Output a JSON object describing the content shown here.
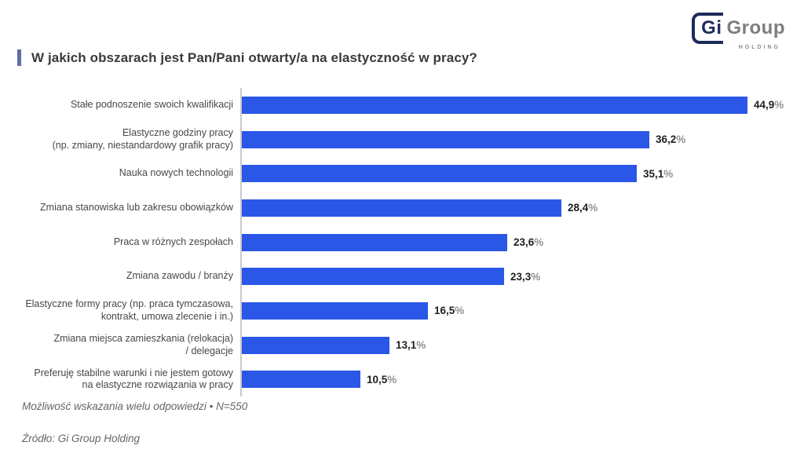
{
  "header": {
    "title": "W jakich obszarach jest Pan/Pani otwarty/a na elastyczność w pracy?",
    "accent_color": "#5e6fa1"
  },
  "logo": {
    "part1": "Gi",
    "part2": "Group",
    "subtitle": "HOLDING",
    "navy_color": "#1c2b5a",
    "gray_color": "#7d7d7d"
  },
  "chart_data": {
    "type": "bar",
    "orientation": "horizontal",
    "title": "W jakich obszarach jest Pan/Pani otwarty/a na elastyczność w pracy?",
    "xlabel": "",
    "ylabel": "",
    "xlim": [
      0,
      45.6
    ],
    "grid": false,
    "legend": false,
    "bar_color": "#2b57e8",
    "axis_line_color": "#c9c9c9",
    "unit": "%",
    "percent_sign": "%",
    "categories": [
      "Stałe podnoszenie swoich kwalifikacji",
      "Elastyczne godziny pracy\n(np. zmiany, niestandardowy grafik pracy)",
      "Nauka nowych technologii",
      "Zmiana stanowiska lub zakresu obowiązków",
      "Praca w różnych zespołach",
      "Zmiana zawodu / branży",
      "Elastyczne formy pracy (np. praca tymczasowa,\nkontrakt, umowa zlecenie i in.)",
      "Zmiana miejsca zamieszkania (relokacja)\n/ delegacje",
      "Preferuję stabilne warunki i nie jestem gotowy\nna elastyczne rozwiązania w pracy"
    ],
    "values": [
      44.9,
      36.2,
      35.1,
      28.4,
      23.6,
      23.3,
      16.5,
      13.1,
      10.5
    ],
    "value_labels": [
      "44,9",
      "36,2",
      "35,1",
      "28,4",
      "23,6",
      "23,3",
      "16,5",
      "13,1",
      "10,5"
    ]
  },
  "footnotes": {
    "methodology": "Możliwość wskazania wielu odpowiedzi • N=550",
    "source": "Źródło: Gi Group Holding"
  }
}
